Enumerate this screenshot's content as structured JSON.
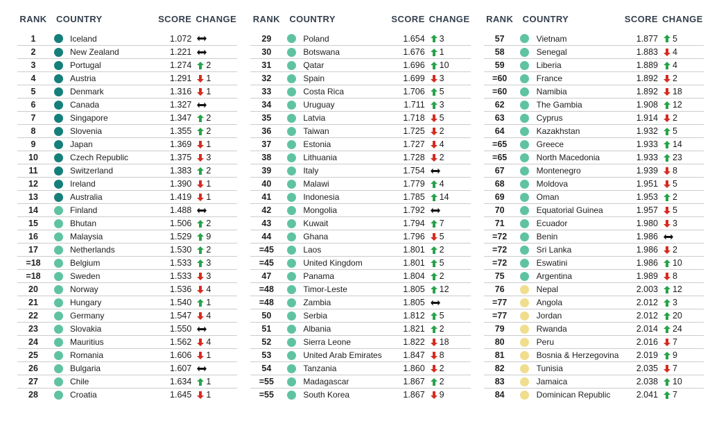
{
  "page": {
    "background": "#ffffff"
  },
  "colors": {
    "header_text": "#35404e",
    "body_text": "#1c1c1c",
    "divider": "#cccccc",
    "dot_dark_teal": "#157f7a",
    "dot_teal": "#5fc3a1",
    "dot_yellow": "#f0dd8d",
    "arrow_up_green": "#27a349",
    "arrow_down_red": "#d62b20",
    "arrow_steady_black": "#111111"
  },
  "chart_data": {
    "type": "table",
    "columns": [
      "RANK",
      "COUNTRY",
      "SCORE",
      "CHANGE"
    ],
    "row_format": [
      "rank",
      "country",
      "score",
      "change_dir",
      "change_value",
      "tier"
    ],
    "tiers": {
      "dark": "dot_dark_teal",
      "mid": "dot_teal",
      "yellow": "dot_yellow"
    },
    "tables": [
      {
        "rows": [
          [
            "1",
            "Iceland",
            "1.072",
            "steady",
            "",
            "dark"
          ],
          [
            "2",
            "New Zealand",
            "1.221",
            "steady",
            "",
            "dark"
          ],
          [
            "3",
            "Portugal",
            "1.274",
            "up",
            "2",
            "dark"
          ],
          [
            "4",
            "Austria",
            "1.291",
            "down",
            "1",
            "dark"
          ],
          [
            "5",
            "Denmark",
            "1.316",
            "down",
            "1",
            "dark"
          ],
          [
            "6",
            "Canada",
            "1.327",
            "steady",
            "",
            "dark"
          ],
          [
            "7",
            "Singapore",
            "1.347",
            "up",
            "2",
            "dark"
          ],
          [
            "8",
            "Slovenia",
            "1.355",
            "up",
            "2",
            "dark"
          ],
          [
            "9",
            "Japan",
            "1.369",
            "down",
            "1",
            "dark"
          ],
          [
            "10",
            "Czech Republic",
            "1.375",
            "down",
            "3",
            "dark"
          ],
          [
            "11",
            "Switzerland",
            "1.383",
            "up",
            "2",
            "dark"
          ],
          [
            "12",
            "Ireland",
            "1.390",
            "down",
            "1",
            "dark"
          ],
          [
            "13",
            "Australia",
            "1.419",
            "down",
            "1",
            "dark"
          ],
          [
            "14",
            "Finland",
            "1.488",
            "steady",
            "",
            "mid"
          ],
          [
            "15",
            "Bhutan",
            "1.506",
            "up",
            "2",
            "mid"
          ],
          [
            "16",
            "Malaysia",
            "1.529",
            "up",
            "9",
            "mid"
          ],
          [
            "17",
            "Netherlands",
            "1.530",
            "up",
            "2",
            "mid"
          ],
          [
            "=18",
            "Belgium",
            "1.533",
            "up",
            "3",
            "mid"
          ],
          [
            "=18",
            "Sweden",
            "1.533",
            "down",
            "3",
            "mid"
          ],
          [
            "20",
            "Norway",
            "1.536",
            "down",
            "4",
            "mid"
          ],
          [
            "21",
            "Hungary",
            "1.540",
            "up",
            "1",
            "mid"
          ],
          [
            "22",
            "Germany",
            "1.547",
            "down",
            "4",
            "mid"
          ],
          [
            "23",
            "Slovakia",
            "1.550",
            "steady",
            "",
            "mid"
          ],
          [
            "24",
            "Mauritius",
            "1.562",
            "down",
            "4",
            "mid"
          ],
          [
            "25",
            "Romania",
            "1.606",
            "down",
            "1",
            "mid"
          ],
          [
            "26",
            "Bulgaria",
            "1.607",
            "steady",
            "",
            "mid"
          ],
          [
            "27",
            "Chile",
            "1.634",
            "up",
            "1",
            "mid"
          ],
          [
            "28",
            "Croatia",
            "1.645",
            "down",
            "1",
            "mid"
          ]
        ]
      },
      {
        "rows": [
          [
            "29",
            "Poland",
            "1.654",
            "up",
            "3",
            "mid"
          ],
          [
            "30",
            "Botswana",
            "1.676",
            "up",
            "1",
            "mid"
          ],
          [
            "31",
            "Qatar",
            "1.696",
            "up",
            "10",
            "mid"
          ],
          [
            "32",
            "Spain",
            "1.699",
            "down",
            "3",
            "mid"
          ],
          [
            "33",
            "Costa Rica",
            "1.706",
            "up",
            "5",
            "mid"
          ],
          [
            "34",
            "Uruguay",
            "1.711",
            "up",
            "3",
            "mid"
          ],
          [
            "35",
            "Latvia",
            "1.718",
            "down",
            "5",
            "mid"
          ],
          [
            "36",
            "Taiwan",
            "1.725",
            "down",
            "2",
            "mid"
          ],
          [
            "37",
            "Estonia",
            "1.727",
            "down",
            "4",
            "mid"
          ],
          [
            "38",
            "Lithuania",
            "1.728",
            "down",
            "2",
            "mid"
          ],
          [
            "39",
            "Italy",
            "1.754",
            "steady",
            "",
            "mid"
          ],
          [
            "40",
            "Malawi",
            "1.779",
            "up",
            "4",
            "mid"
          ],
          [
            "41",
            "Indonesia",
            "1.785",
            "up",
            "14",
            "mid"
          ],
          [
            "42",
            "Mongolia",
            "1.792",
            "steady",
            "",
            "mid"
          ],
          [
            "43",
            "Kuwait",
            "1.794",
            "up",
            "7",
            "mid"
          ],
          [
            "44",
            "Ghana",
            "1.796",
            "down",
            "5",
            "mid"
          ],
          [
            "=45",
            "Laos",
            "1.801",
            "up",
            "2",
            "mid"
          ],
          [
            "=45",
            "United Kingdom",
            "1.801",
            "up",
            "5",
            "mid"
          ],
          [
            "47",
            "Panama",
            "1.804",
            "up",
            "2",
            "mid"
          ],
          [
            "=48",
            "Timor-Leste",
            "1.805",
            "up",
            "12",
            "mid"
          ],
          [
            "=48",
            "Zambia",
            "1.805",
            "steady",
            "",
            "mid"
          ],
          [
            "50",
            "Serbia",
            "1.812",
            "up",
            "5",
            "mid"
          ],
          [
            "51",
            "Albania",
            "1.821",
            "up",
            "2",
            "mid"
          ],
          [
            "52",
            "Sierra Leone",
            "1.822",
            "down",
            "18",
            "mid"
          ],
          [
            "53",
            "United Arab Emirates",
            "1.847",
            "down",
            "8",
            "mid"
          ],
          [
            "54",
            "Tanzania",
            "1.860",
            "down",
            "2",
            "mid"
          ],
          [
            "=55",
            "Madagascar",
            "1.867",
            "up",
            "2",
            "mid"
          ],
          [
            "=55",
            "South Korea",
            "1.867",
            "down",
            "9",
            "mid"
          ]
        ]
      },
      {
        "rows": [
          [
            "57",
            "Vietnam",
            "1.877",
            "up",
            "5",
            "mid"
          ],
          [
            "58",
            "Senegal",
            "1.883",
            "down",
            "4",
            "mid"
          ],
          [
            "59",
            "Liberia",
            "1.889",
            "up",
            "4",
            "mid"
          ],
          [
            "=60",
            "France",
            "1.892",
            "down",
            "2",
            "mid"
          ],
          [
            "=60",
            "Namibia",
            "1.892",
            "down",
            "18",
            "mid"
          ],
          [
            "62",
            "The Gambia",
            "1.908",
            "up",
            "12",
            "mid"
          ],
          [
            "63",
            "Cyprus",
            "1.914",
            "down",
            "2",
            "mid"
          ],
          [
            "64",
            "Kazakhstan",
            "1.932",
            "up",
            "5",
            "mid"
          ],
          [
            "=65",
            "Greece",
            "1.933",
            "up",
            "14",
            "mid"
          ],
          [
            "=65",
            "North Macedonia",
            "1.933",
            "up",
            "23",
            "mid"
          ],
          [
            "67",
            "Montenegro",
            "1.939",
            "down",
            "8",
            "mid"
          ],
          [
            "68",
            "Moldova",
            "1.951",
            "down",
            "5",
            "mid"
          ],
          [
            "69",
            "Oman",
            "1.953",
            "up",
            "2",
            "mid"
          ],
          [
            "70",
            "Equatorial Guinea",
            "1.957",
            "down",
            "5",
            "mid"
          ],
          [
            "71",
            "Ecuador",
            "1.980",
            "down",
            "3",
            "mid"
          ],
          [
            "=72",
            "Benin",
            "1.986",
            "steady",
            "",
            "mid"
          ],
          [
            "=72",
            "Sri Lanka",
            "1.986",
            "down",
            "2",
            "mid"
          ],
          [
            "=72",
            "Eswatini",
            "1.986",
            "up",
            "10",
            "mid"
          ],
          [
            "75",
            "Argentina",
            "1.989",
            "down",
            "8",
            "mid"
          ],
          [
            "76",
            "Nepal",
            "2.003",
            "up",
            "12",
            "yellow"
          ],
          [
            "=77",
            "Angola",
            "2.012",
            "up",
            "3",
            "yellow"
          ],
          [
            "=77",
            "Jordan",
            "2.012",
            "up",
            "20",
            "yellow"
          ],
          [
            "79",
            "Rwanda",
            "2.014",
            "up",
            "24",
            "yellow"
          ],
          [
            "80",
            "Peru",
            "2.016",
            "down",
            "7",
            "yellow"
          ],
          [
            "81",
            "Bosnia & Herzegovina",
            "2.019",
            "up",
            "9",
            "yellow"
          ],
          [
            "82",
            "Tunisia",
            "2.035",
            "down",
            "7",
            "yellow"
          ],
          [
            "83",
            "Jamaica",
            "2.038",
            "up",
            "10",
            "yellow"
          ],
          [
            "84",
            "Dominican Republic",
            "2.041",
            "up",
            "7",
            "yellow"
          ]
        ]
      }
    ]
  }
}
